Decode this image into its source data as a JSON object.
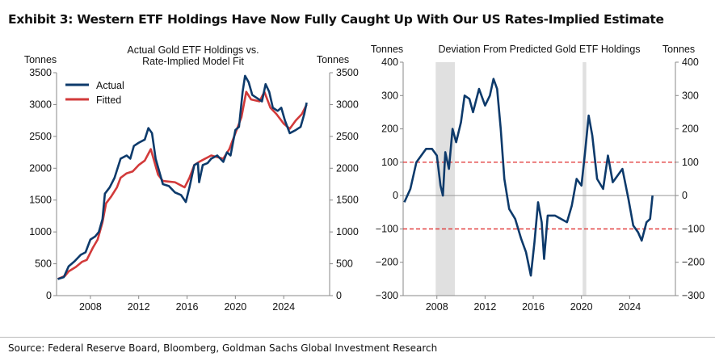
{
  "title": "Exhibit 3: Western ETF Holdings Have Now Fully Caught Up With Our US Rates-Implied Estimate",
  "source": "Source: Federal Reserve Board, Bloomberg, Goldman Sachs Global Investment Research",
  "chart_data": [
    {
      "type": "line",
      "title": "Actual Gold ETF Holdings vs. Rate-Implied Model Fit",
      "title_lines": [
        "Actual Gold ETF Holdings vs.",
        "Rate-Implied Model Fit"
      ],
      "ylabel_left": "Tonnes",
      "ylabel_right": "Tonnes",
      "xlim": [
        2005.2,
        2027.8
      ],
      "ylim": [
        0,
        3500
      ],
      "xticks": [
        "2008",
        "2012",
        "2016",
        "2020",
        "2024"
      ],
      "yticks": [
        "0",
        "500",
        "1000",
        "1500",
        "2000",
        "2500",
        "3000",
        "3500"
      ],
      "legend_position": "top-left",
      "series": [
        {
          "name": "Actual",
          "color": "#0d3a6b",
          "points": [
            [
              2005.3,
              260
            ],
            [
              2005.8,
              290
            ],
            [
              2006.2,
              460
            ],
            [
              2006.7,
              540
            ],
            [
              2007.2,
              640
            ],
            [
              2007.6,
              680
            ],
            [
              2008,
              880
            ],
            [
              2008.4,
              930
            ],
            [
              2008.7,
              1000
            ],
            [
              2009,
              1200
            ],
            [
              2009.2,
              1600
            ],
            [
              2009.6,
              1700
            ],
            [
              2010,
              1850
            ],
            [
              2010.5,
              2150
            ],
            [
              2011,
              2200
            ],
            [
              2011.3,
              2150
            ],
            [
              2011.6,
              2350
            ],
            [
              2012,
              2400
            ],
            [
              2012.5,
              2450
            ],
            [
              2012.8,
              2630
            ],
            [
              2013.1,
              2550
            ],
            [
              2013.4,
              2150
            ],
            [
              2013.7,
              1950
            ],
            [
              2014,
              1750
            ],
            [
              2014.5,
              1720
            ],
            [
              2015,
              1620
            ],
            [
              2015.5,
              1580
            ],
            [
              2015.9,
              1470
            ],
            [
              2016.2,
              1700
            ],
            [
              2016.6,
              2050
            ],
            [
              2016.9,
              2080
            ],
            [
              2017,
              1780
            ],
            [
              2017.3,
              2050
            ],
            [
              2017.7,
              2080
            ],
            [
              2018,
              2150
            ],
            [
              2018.5,
              2200
            ],
            [
              2019,
              2100
            ],
            [
              2019.3,
              2250
            ],
            [
              2019.6,
              2200
            ],
            [
              2020,
              2600
            ],
            [
              2020.3,
              2650
            ],
            [
              2020.6,
              3200
            ],
            [
              2020.8,
              3450
            ],
            [
              2021.1,
              3350
            ],
            [
              2021.4,
              3150
            ],
            [
              2021.8,
              3100
            ],
            [
              2022.2,
              3050
            ],
            [
              2022.5,
              3320
            ],
            [
              2022.8,
              3200
            ],
            [
              2023.1,
              2950
            ],
            [
              2023.5,
              2900
            ],
            [
              2023.8,
              2950
            ],
            [
              2024.1,
              2750
            ],
            [
              2024.5,
              2550
            ],
            [
              2025,
              2600
            ],
            [
              2025.4,
              2650
            ],
            [
              2025.7,
              2850
            ],
            [
              2025.9,
              3030
            ]
          ]
        },
        {
          "name": "Fitted",
          "color": "#d23a3a",
          "points": [
            [
              2005.3,
              260
            ],
            [
              2005.9,
              310
            ],
            [
              2006.2,
              380
            ],
            [
              2006.8,
              450
            ],
            [
              2007.3,
              530
            ],
            [
              2007.7,
              560
            ],
            [
              2008.2,
              750
            ],
            [
              2008.6,
              880
            ],
            [
              2009,
              1150
            ],
            [
              2009.3,
              1450
            ],
            [
              2009.7,
              1550
            ],
            [
              2010.2,
              1700
            ],
            [
              2010.5,
              1850
            ],
            [
              2011,
              1920
            ],
            [
              2011.5,
              1950
            ],
            [
              2012,
              2050
            ],
            [
              2012.5,
              2120
            ],
            [
              2013,
              2300
            ],
            [
              2013.3,
              2100
            ],
            [
              2013.6,
              1900
            ],
            [
              2014,
              1800
            ],
            [
              2015,
              1780
            ],
            [
              2015.8,
              1700
            ],
            [
              2016.2,
              1850
            ],
            [
              2016.6,
              2050
            ],
            [
              2017,
              2100
            ],
            [
              2018,
              2200
            ],
            [
              2019,
              2150
            ],
            [
              2019.5,
              2300
            ],
            [
              2020,
              2550
            ],
            [
              2020.5,
              2800
            ],
            [
              2020.9,
              3200
            ],
            [
              2021.3,
              3080
            ],
            [
              2022,
              3050
            ],
            [
              2022.4,
              3200
            ],
            [
              2022.9,
              2950
            ],
            [
              2023.4,
              2850
            ],
            [
              2024,
              2700
            ],
            [
              2024.5,
              2620
            ],
            [
              2025,
              2750
            ],
            [
              2025.5,
              2850
            ],
            [
              2025.9,
              3000
            ]
          ]
        }
      ]
    },
    {
      "type": "line",
      "title": "Deviation From Predicted Gold ETF Holdings",
      "ylabel_left": "Tonnes",
      "ylabel_right": "Tonnes",
      "xlim": [
        2005.2,
        2027.8
      ],
      "ylim": [
        -300,
        400
      ],
      "xticks": [
        "2008",
        "2012",
        "2016",
        "2020",
        "2024"
      ],
      "yticks": [
        "-300",
        "-200",
        "-100",
        "0",
        "100",
        "200",
        "300",
        "400"
      ],
      "reference_lines": [
        {
          "y": 100,
          "style": "dashed",
          "color": "#e03030"
        },
        {
          "y": -100,
          "style": "dashed",
          "color": "#e03030"
        },
        {
          "y": 0,
          "style": "solid",
          "color": "#999999"
        }
      ],
      "shaded_periods": [
        [
          2007.9,
          2009.5
        ],
        [
          2020.1,
          2020.4
        ]
      ],
      "series": [
        {
          "name": "Deviation",
          "color": "#0d3a6b",
          "points": [
            [
              2005.3,
              -20
            ],
            [
              2005.8,
              20
            ],
            [
              2006.3,
              100
            ],
            [
              2006.7,
              120
            ],
            [
              2007.1,
              140
            ],
            [
              2007.6,
              140
            ],
            [
              2008,
              120
            ],
            [
              2008.3,
              30
            ],
            [
              2008.5,
              0
            ],
            [
              2008.7,
              130
            ],
            [
              2009,
              80
            ],
            [
              2009.3,
              200
            ],
            [
              2009.6,
              160
            ],
            [
              2010,
              220
            ],
            [
              2010.3,
              300
            ],
            [
              2010.7,
              290
            ],
            [
              2011,
              250
            ],
            [
              2011.5,
              320
            ],
            [
              2012,
              270
            ],
            [
              2012.4,
              300
            ],
            [
              2012.7,
              350
            ],
            [
              2013,
              320
            ],
            [
              2013.3,
              200
            ],
            [
              2013.6,
              50
            ],
            [
              2014,
              -40
            ],
            [
              2014.5,
              -70
            ],
            [
              2015,
              -130
            ],
            [
              2015.4,
              -170
            ],
            [
              2015.8,
              -240
            ],
            [
              2016.1,
              -140
            ],
            [
              2016.4,
              -20
            ],
            [
              2016.7,
              -80
            ],
            [
              2016.9,
              -190
            ],
            [
              2017.2,
              -60
            ],
            [
              2017.8,
              -60
            ],
            [
              2018.3,
              -70
            ],
            [
              2018.8,
              -80
            ],
            [
              2019.2,
              -30
            ],
            [
              2019.6,
              50
            ],
            [
              2020,
              30
            ],
            [
              2020.3,
              130
            ],
            [
              2020.6,
              240
            ],
            [
              2020.9,
              180
            ],
            [
              2021.3,
              50
            ],
            [
              2021.8,
              20
            ],
            [
              2022.2,
              120
            ],
            [
              2022.6,
              40
            ],
            [
              2023,
              60
            ],
            [
              2023.4,
              80
            ],
            [
              2023.9,
              -10
            ],
            [
              2024.3,
              -90
            ],
            [
              2024.7,
              -110
            ],
            [
              2025,
              -135
            ],
            [
              2025.4,
              -80
            ],
            [
              2025.7,
              -70
            ],
            [
              2025.9,
              0
            ]
          ]
        }
      ]
    }
  ]
}
